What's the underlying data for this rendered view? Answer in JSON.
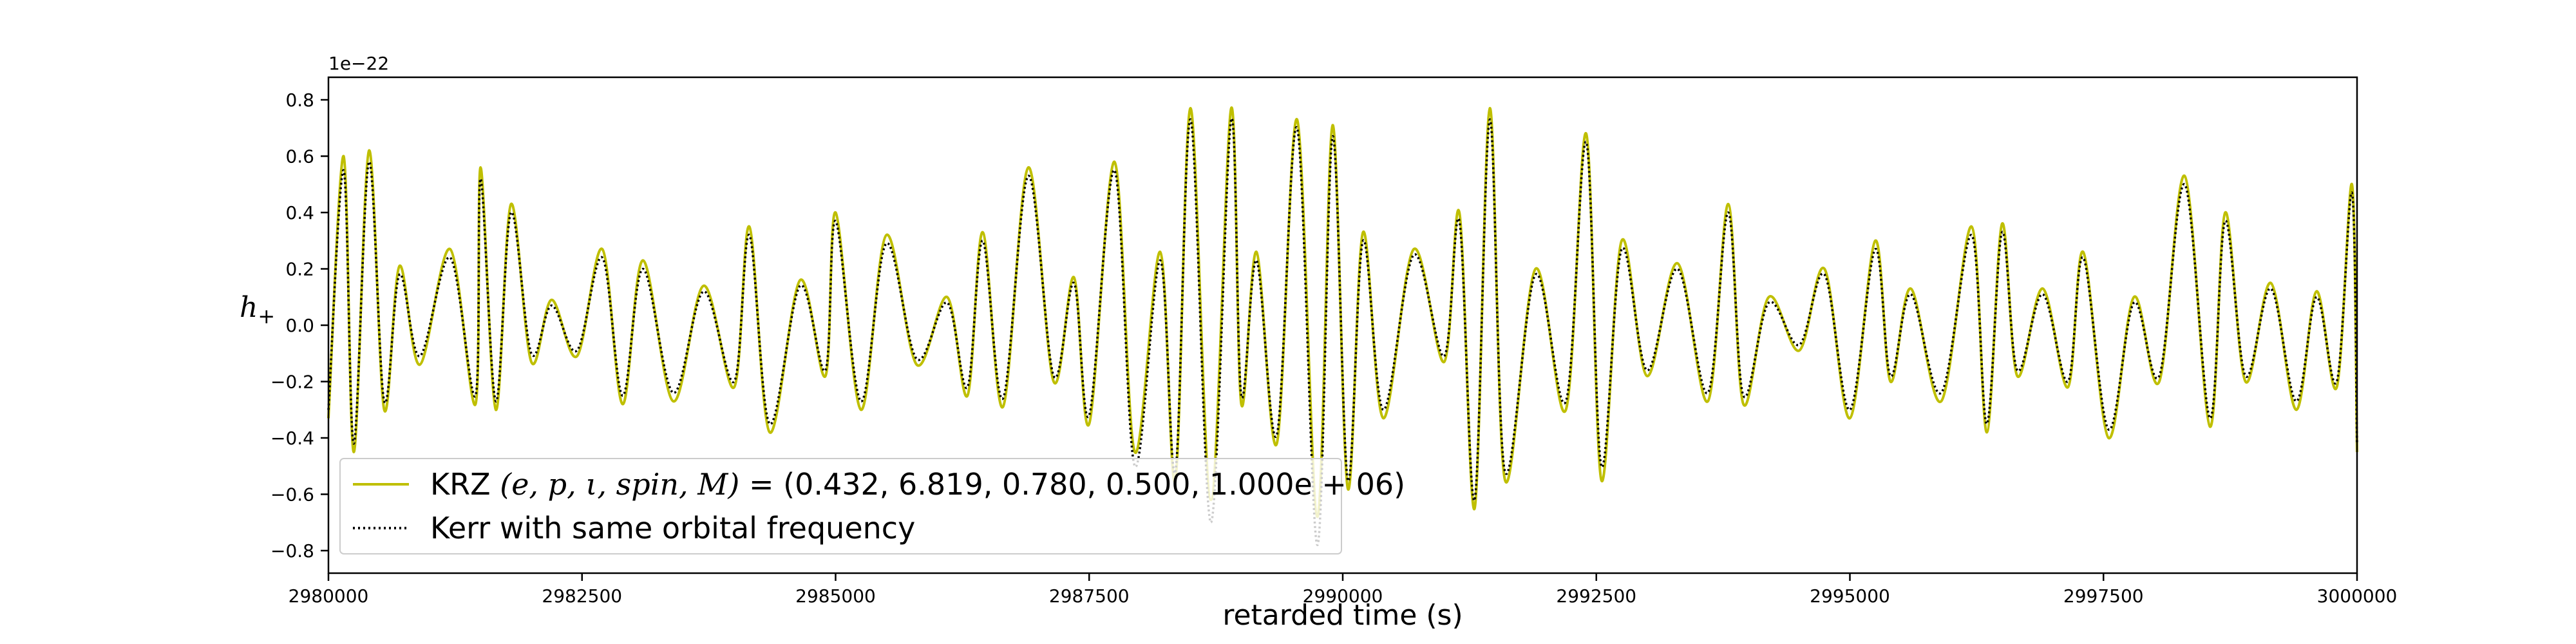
{
  "chart_data": {
    "type": "line",
    "xlabel": "retarded time (s)",
    "ylabel": "h",
    "ylabel_sub": "+",
    "offset_text": "1e−22",
    "xlim": [
      2980000,
      3000000
    ],
    "ylim": [
      -0.88,
      0.88
    ],
    "x_ticks": [
      2980000,
      2982500,
      2985000,
      2987500,
      2990000,
      2992500,
      2995000,
      2997500,
      3000000
    ],
    "x_tick_labels": [
      "2980000",
      "2982500",
      "2985000",
      "2987500",
      "2990000",
      "2992500",
      "2995000",
      "2997500",
      "3000000"
    ],
    "y_ticks": [
      -0.8,
      -0.6,
      -0.4,
      -0.2,
      0.0,
      0.2,
      0.4,
      0.6,
      0.8
    ],
    "y_tick_labels": [
      "−0.8",
      "−0.6",
      "−0.4",
      "−0.2",
      "0.0",
      "0.2",
      "0.4",
      "0.6",
      "0.8"
    ],
    "grid": false,
    "legend_placement": "lower-left",
    "series": [
      {
        "name": "KRZ",
        "legend_label": {
          "prefix": "KRZ ",
          "params": "(e, p, ι, spin, M)",
          "equals": " = ",
          "values": "(0.432, 6.819, 0.780, 0.500, 1.000e + 06)"
        },
        "color": "#bfbf00",
        "style": "solid",
        "x": [
          2980000,
          2980150,
          2980250,
          2980400,
          2980550,
          2980700,
          2980900,
          2981200,
          2981450,
          2981500,
          2981650,
          2981800,
          2982000,
          2982200,
          2982450,
          2982700,
          2982900,
          2983100,
          2983400,
          2983700,
          2984000,
          2984150,
          2984350,
          2984650,
          2984900,
          2985000,
          2985250,
          2985500,
          2985800,
          2986100,
          2986300,
          2986450,
          2986650,
          2986900,
          2987150,
          2987350,
          2987500,
          2987750,
          2987950,
          2988200,
          2988350,
          2988500,
          2988700,
          2988900,
          2989000,
          2989150,
          2989350,
          2989550,
          2989750,
          2989900,
          2990050,
          2990200,
          2990400,
          2990700,
          2991000,
          2991150,
          2991300,
          2991450,
          2991600,
          2991900,
          2992200,
          2992400,
          2992550,
          2992750,
          2993000,
          2993300,
          2993600,
          2993800,
          2993950,
          2994200,
          2994500,
          2994750,
          2995000,
          2995250,
          2995400,
          2995600,
          2995900,
          2996200,
          2996350,
          2996500,
          2996650,
          2996900,
          2997150,
          2997300,
          2997550,
          2997800,
          2998050,
          2998300,
          2998550,
          2998700,
          2998900,
          2999150,
          2999400,
          2999600,
          2999800,
          2999950,
          3000000
        ],
        "y": [
          -0.33,
          0.6,
          -0.45,
          0.62,
          -0.3,
          0.21,
          -0.14,
          0.27,
          -0.28,
          0.56,
          -0.3,
          0.43,
          -0.13,
          0.09,
          -0.11,
          0.27,
          -0.28,
          0.23,
          -0.27,
          0.14,
          -0.22,
          0.35,
          -0.38,
          0.16,
          -0.18,
          0.4,
          -0.3,
          0.32,
          -0.14,
          0.1,
          -0.25,
          0.33,
          -0.29,
          0.56,
          -0.2,
          0.17,
          -0.35,
          0.58,
          -0.45,
          0.26,
          -0.55,
          0.77,
          -0.62,
          0.77,
          -0.28,
          0.26,
          -0.42,
          0.73,
          -0.68,
          0.71,
          -0.58,
          0.33,
          -0.33,
          0.27,
          -0.13,
          0.4,
          -0.65,
          0.77,
          -0.55,
          0.2,
          -0.3,
          0.68,
          -0.55,
          0.3,
          -0.18,
          0.22,
          -0.27,
          0.43,
          -0.28,
          0.1,
          -0.09,
          0.2,
          -0.33,
          0.3,
          -0.2,
          0.13,
          -0.27,
          0.35,
          -0.38,
          0.36,
          -0.18,
          0.13,
          -0.22,
          0.26,
          -0.4,
          0.1,
          -0.2,
          0.53,
          -0.36,
          0.4,
          -0.2,
          0.15,
          -0.3,
          0.12,
          -0.22,
          0.5,
          -0.45
        ]
      },
      {
        "name": "Kerr",
        "legend_label": "Kerr with same orbital frequency",
        "color": "#000000",
        "style": "dotted",
        "x": [
          2980000,
          2980150,
          2980250,
          2980400,
          2980550,
          2980700,
          2980900,
          2981200,
          2981450,
          2981500,
          2981650,
          2981800,
          2982000,
          2982200,
          2982450,
          2982700,
          2982900,
          2983100,
          2983400,
          2983700,
          2984000,
          2984150,
          2984350,
          2984650,
          2984900,
          2985000,
          2985250,
          2985500,
          2985800,
          2986100,
          2986300,
          2986450,
          2986650,
          2986900,
          2987150,
          2987350,
          2987500,
          2987750,
          2987950,
          2988200,
          2988350,
          2988500,
          2988700,
          2988900,
          2989000,
          2989150,
          2989350,
          2989550,
          2989750,
          2989900,
          2990050,
          2990200,
          2990400,
          2990700,
          2991000,
          2991150,
          2991300,
          2991450,
          2991600,
          2991900,
          2992200,
          2992400,
          2992550,
          2992750,
          2993000,
          2993300,
          2993600,
          2993800,
          2993950,
          2994200,
          2994500,
          2994750,
          2995000,
          2995250,
          2995400,
          2995600,
          2995900,
          2996200,
          2996350,
          2996500,
          2996650,
          2996900,
          2997150,
          2997300,
          2997550,
          2997800,
          2998050,
          2998300,
          2998550,
          2998700,
          2998900,
          2999150,
          2999400,
          2999600,
          2999800,
          2999950,
          3000000
        ],
        "y": [
          -0.3,
          0.55,
          -0.42,
          0.58,
          -0.27,
          0.18,
          -0.11,
          0.24,
          -0.25,
          0.52,
          -0.27,
          0.4,
          -0.1,
          0.07,
          -0.09,
          0.24,
          -0.25,
          0.2,
          -0.24,
          0.12,
          -0.2,
          0.32,
          -0.35,
          0.14,
          -0.16,
          0.37,
          -0.27,
          0.29,
          -0.12,
          0.08,
          -0.22,
          0.3,
          -0.26,
          0.53,
          -0.18,
          0.15,
          -0.32,
          0.55,
          -0.5,
          0.23,
          -0.52,
          0.73,
          -0.7,
          0.73,
          -0.25,
          0.23,
          -0.39,
          0.7,
          -0.78,
          0.67,
          -0.55,
          0.3,
          -0.3,
          0.25,
          -0.11,
          0.37,
          -0.62,
          0.73,
          -0.52,
          0.18,
          -0.27,
          0.65,
          -0.5,
          0.27,
          -0.16,
          0.2,
          -0.24,
          0.4,
          -0.25,
          0.08,
          -0.07,
          0.18,
          -0.3,
          0.27,
          -0.18,
          0.11,
          -0.24,
          0.32,
          -0.35,
          0.33,
          -0.16,
          0.11,
          -0.2,
          0.24,
          -0.37,
          0.08,
          -0.18,
          0.5,
          -0.33,
          0.37,
          -0.18,
          0.13,
          -0.27,
          0.1,
          -0.2,
          0.47,
          -0.42
        ]
      }
    ]
  }
}
